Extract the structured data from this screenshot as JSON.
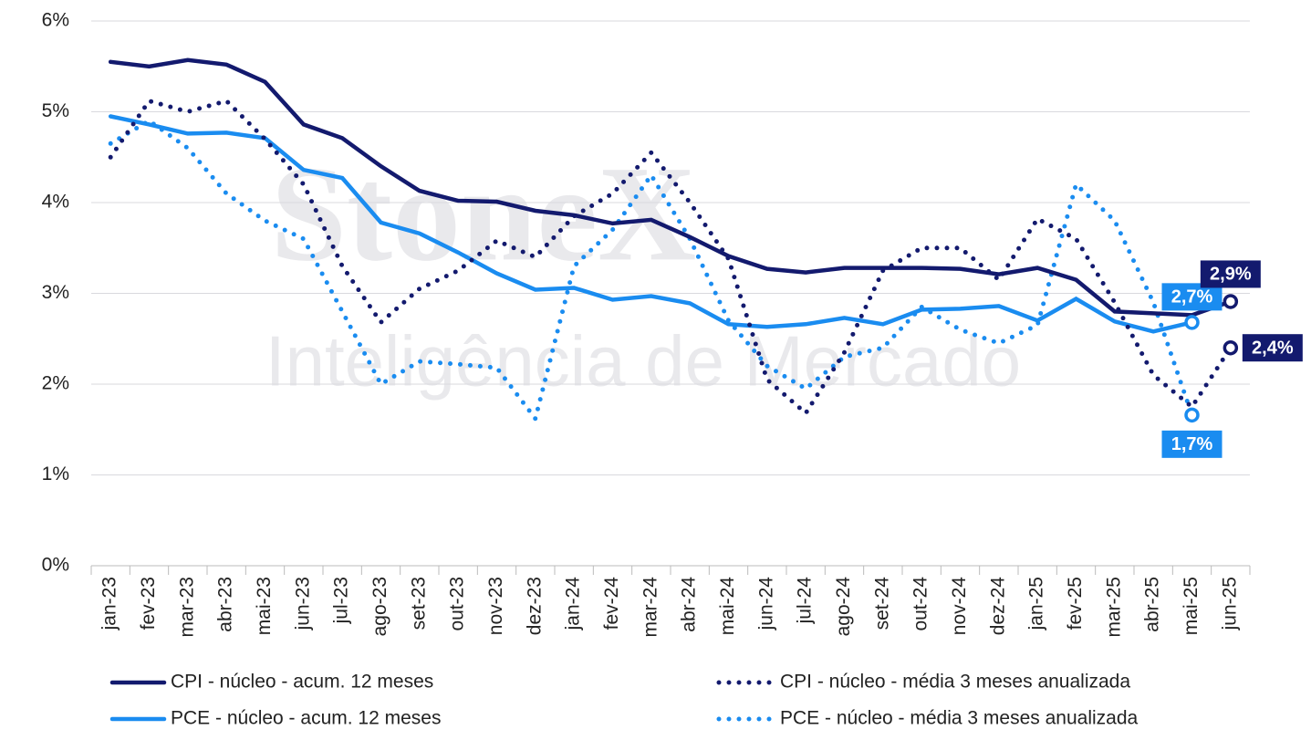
{
  "chart_data": {
    "type": "line",
    "watermark": [
      "StoneX",
      "Inteligência de Mercado"
    ],
    "categories": [
      "jan-23",
      "fev-23",
      "mar-23",
      "abr-23",
      "mai-23",
      "jun-23",
      "jul-23",
      "ago-23",
      "set-23",
      "out-23",
      "nov-23",
      "dez-23",
      "jan-24",
      "fev-24",
      "mar-24",
      "abr-24",
      "mai-24",
      "jun-24",
      "jul-24",
      "ago-24",
      "set-24",
      "out-24",
      "nov-24",
      "dez-24",
      "jan-25",
      "fev-25",
      "mar-25",
      "abr-25",
      "mai-25",
      "jun-25"
    ],
    "ylim": [
      0,
      6
    ],
    "yticks": [
      {
        "value": 0,
        "label": "0%"
      },
      {
        "value": 1,
        "label": "1%"
      },
      {
        "value": 2,
        "label": "2%"
      },
      {
        "value": 3,
        "label": "3%"
      },
      {
        "value": 4,
        "label": "4%"
      },
      {
        "value": 5,
        "label": "5%"
      },
      {
        "value": 6,
        "label": "6%"
      }
    ],
    "grid": true,
    "series": [
      {
        "name": "CPI - núcleo - acum. 12 meses",
        "color": "#131a6e",
        "style": "solid",
        "values": [
          5.55,
          5.5,
          5.57,
          5.52,
          5.33,
          4.86,
          4.71,
          4.4,
          4.13,
          4.02,
          4.01,
          3.91,
          3.86,
          3.77,
          3.81,
          3.62,
          3.41,
          3.27,
          3.23,
          3.28,
          3.28,
          3.28,
          3.27,
          3.21,
          3.28,
          3.15,
          2.8,
          2.78,
          2.76,
          2.91
        ],
        "value_labels": [
          null,
          null,
          null,
          null,
          null,
          null,
          null,
          null,
          null,
          null,
          null,
          null,
          null,
          null,
          null,
          null,
          null,
          null,
          null,
          null,
          null,
          null,
          null,
          null,
          null,
          null,
          null,
          null,
          null,
          "2,9%"
        ]
      },
      {
        "name": "CPI - núcleo - média 3 meses anualizada",
        "color": "#131a6e",
        "style": "dotted",
        "values": [
          4.5,
          5.12,
          5.0,
          5.12,
          4.7,
          4.2,
          3.3,
          2.68,
          3.05,
          3.25,
          3.58,
          3.4,
          3.85,
          4.1,
          4.55,
          4.0,
          3.38,
          2.05,
          1.68,
          2.35,
          3.25,
          3.5,
          3.5,
          3.15,
          3.82,
          3.6,
          2.9,
          2.1,
          1.75,
          2.4
        ],
        "value_labels": [
          null,
          null,
          null,
          null,
          null,
          null,
          null,
          null,
          null,
          null,
          null,
          null,
          null,
          null,
          null,
          null,
          null,
          null,
          null,
          null,
          null,
          null,
          null,
          null,
          null,
          null,
          null,
          null,
          null,
          "2,4%"
        ]
      },
      {
        "name": "PCE - núcleo - acum. 12 meses",
        "color": "#1a8cf0",
        "style": "solid",
        "values": [
          4.95,
          4.86,
          4.76,
          4.77,
          4.71,
          4.36,
          4.27,
          3.78,
          3.66,
          3.45,
          3.22,
          3.04,
          3.06,
          2.93,
          2.97,
          2.89,
          2.66,
          2.63,
          2.66,
          2.73,
          2.66,
          2.82,
          2.83,
          2.86,
          2.7,
          2.94,
          2.69,
          2.58,
          2.68,
          null
        ],
        "value_labels": [
          null,
          null,
          null,
          null,
          null,
          null,
          null,
          null,
          null,
          null,
          null,
          null,
          null,
          null,
          null,
          null,
          null,
          null,
          null,
          null,
          null,
          null,
          null,
          null,
          null,
          null,
          null,
          null,
          "2,7%",
          null
        ]
      },
      {
        "name": "PCE - núcleo - média 3 meses anualizada",
        "color": "#1a8cf0",
        "style": "dotted",
        "values": [
          4.65,
          4.9,
          4.6,
          4.1,
          3.8,
          3.6,
          2.8,
          2.0,
          2.25,
          2.22,
          2.18,
          1.62,
          3.3,
          3.7,
          4.3,
          3.6,
          2.7,
          2.2,
          1.95,
          2.3,
          2.4,
          2.85,
          2.6,
          2.45,
          2.65,
          4.2,
          3.8,
          2.9,
          1.66,
          null
        ],
        "value_labels": [
          null,
          null,
          null,
          null,
          null,
          null,
          null,
          null,
          null,
          null,
          null,
          null,
          null,
          null,
          null,
          null,
          null,
          null,
          null,
          null,
          null,
          null,
          null,
          null,
          null,
          null,
          null,
          null,
          "1,7%",
          null
        ]
      }
    ]
  }
}
